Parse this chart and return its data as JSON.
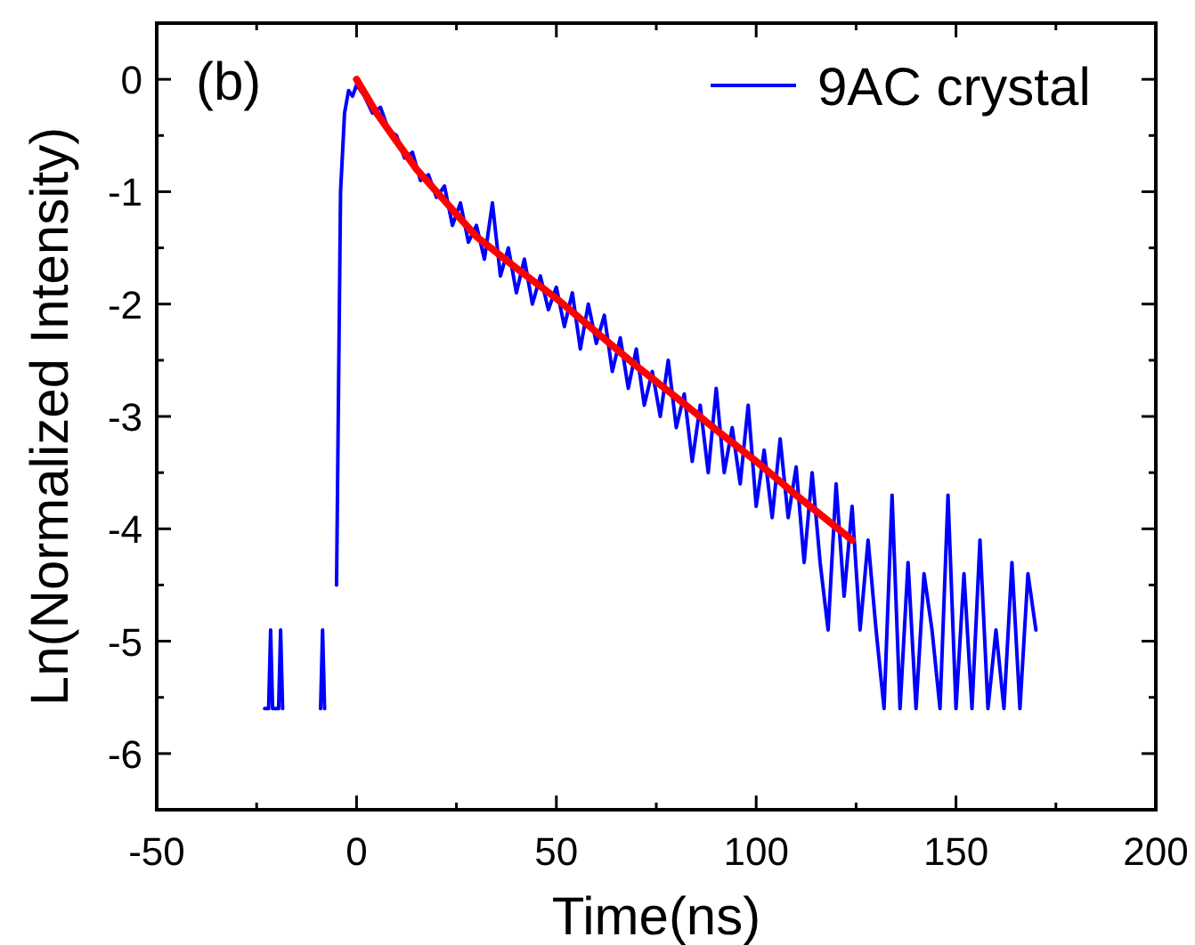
{
  "chart_data": {
    "type": "line",
    "xlabel": "Time(ns)",
    "ylabel": "Ln(Normalized Intensity)",
    "annotations": [
      "(b)"
    ],
    "xlim": [
      -50,
      200
    ],
    "xticks": [
      -50,
      0,
      50,
      100,
      150,
      200
    ],
    "ylim": [
      -6.5,
      0.5
    ],
    "yticks": [
      -6,
      -5,
      -4,
      -3,
      -2,
      -1,
      0
    ],
    "grid": false,
    "legend": "top right",
    "marker": "none",
    "line_style": "solid",
    "series": [
      {
        "name": "9AC crystal",
        "color": "#0000ff",
        "x": [
          -23,
          -22,
          -21.5,
          -21,
          -19.5,
          -19,
          -18.5,
          -14,
          -9,
          -8.5,
          -8,
          -6,
          -5,
          -4,
          -3,
          -2,
          -1,
          0,
          2,
          4,
          6,
          8,
          10,
          12,
          14,
          16,
          18,
          20,
          22,
          24,
          26,
          28,
          30,
          32,
          34,
          36,
          38,
          40,
          42,
          44,
          46,
          48,
          50,
          52,
          54,
          56,
          58,
          60,
          62,
          64,
          66,
          68,
          70,
          72,
          74,
          76,
          78,
          80,
          82,
          84,
          86,
          88,
          90,
          92,
          94,
          96,
          98,
          100,
          102,
          104,
          106,
          108,
          110,
          112,
          114,
          116,
          118,
          120,
          122,
          124,
          126,
          128,
          130,
          132,
          134,
          136,
          138,
          140,
          142,
          144,
          146,
          148,
          150,
          152,
          154,
          156,
          158,
          160,
          162,
          164,
          166,
          168,
          170
        ],
        "values": [
          -5.6,
          -5.6,
          -4.9,
          -5.6,
          -5.6,
          -4.9,
          -5.6,
          null,
          -5.6,
          -4.9,
          -5.6,
          null,
          -4.5,
          -1.0,
          -0.3,
          -0.1,
          -0.15,
          -0.05,
          -0.15,
          -0.3,
          -0.25,
          -0.45,
          -0.5,
          -0.7,
          -0.65,
          -0.9,
          -0.85,
          -1.05,
          -0.95,
          -1.3,
          -1.1,
          -1.45,
          -1.3,
          -1.6,
          -1.1,
          -1.75,
          -1.5,
          -1.9,
          -1.6,
          -2.0,
          -1.75,
          -2.05,
          -1.85,
          -2.2,
          -1.9,
          -2.4,
          -2.0,
          -2.35,
          -2.1,
          -2.6,
          -2.3,
          -2.75,
          -2.4,
          -2.9,
          -2.6,
          -3.0,
          -2.5,
          -3.1,
          -2.8,
          -3.4,
          -2.9,
          -3.5,
          -2.75,
          -3.5,
          -3.1,
          -3.6,
          -2.9,
          -3.8,
          -3.3,
          -3.9,
          -3.2,
          -3.9,
          -3.45,
          -4.3,
          -3.5,
          -4.3,
          -4.9,
          -3.6,
          -4.6,
          -3.8,
          -4.9,
          -4.1,
          -4.9,
          -5.6,
          -3.7,
          -5.6,
          -4.3,
          -5.6,
          -4.4,
          -4.9,
          -5.6,
          -3.7,
          -5.6,
          -4.4,
          -5.6,
          -4.1,
          -5.6,
          -4.9,
          -5.6,
          -4.3,
          -5.6,
          -4.4,
          -4.9
        ]
      },
      {
        "color": "#ff0000",
        "x": [
          0,
          5,
          10,
          15,
          20,
          30,
          40,
          50,
          60,
          70,
          80,
          90,
          100,
          110,
          124
        ],
        "values": [
          0,
          -0.3,
          -0.55,
          -0.8,
          -1.0,
          -1.4,
          -1.68,
          -1.95,
          -2.25,
          -2.55,
          -2.83,
          -3.12,
          -3.4,
          -3.7,
          -4.1
        ]
      }
    ]
  }
}
